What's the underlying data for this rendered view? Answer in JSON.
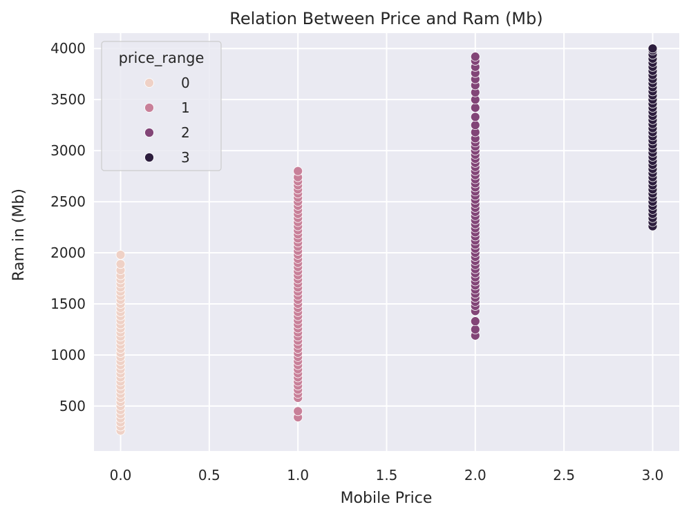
{
  "chart_data": {
    "type": "scatter",
    "title": "Relation Between Price and Ram (Mb)",
    "xlabel": "Mobile Price",
    "ylabel": "Ram in (Mb)",
    "xlim": [
      -0.15,
      3.15
    ],
    "ylim": [
      60,
      4150
    ],
    "xticks": [
      0.0,
      0.5,
      1.0,
      1.5,
      2.0,
      2.5,
      3.0
    ],
    "xtick_labels": [
      "0.0",
      "0.5",
      "1.0",
      "1.5",
      "2.0",
      "2.5",
      "3.0"
    ],
    "yticks": [
      500,
      1000,
      1500,
      2000,
      2500,
      3000,
      3500,
      4000
    ],
    "ytick_labels": [
      "500",
      "1000",
      "1500",
      "2000",
      "2500",
      "3000",
      "3500",
      "4000"
    ],
    "grid": true,
    "background": "#EAEAF2",
    "legend": {
      "title": "price_range",
      "placement": "top-left",
      "entries": [
        {
          "label": "0",
          "color": "#EFD1C6"
        },
        {
          "label": "1",
          "color": "#C88099"
        },
        {
          "label": "2",
          "color": "#824577"
        },
        {
          "label": "3",
          "color": "#2D1E3E"
        }
      ]
    },
    "series": [
      {
        "name": "0",
        "x": 0,
        "color": "#EFD1C6",
        "y": [
          260,
          300,
          340,
          380,
          420,
          460,
          500,
          540,
          580,
          620,
          660,
          700,
          740,
          780,
          820,
          860,
          900,
          940,
          980,
          1020,
          1060,
          1100,
          1140,
          1180,
          1220,
          1260,
          1300,
          1340,
          1380,
          1420,
          1460,
          1500,
          1540,
          1580,
          1620,
          1660,
          1700,
          1740,
          1780,
          1830,
          1890,
          1980
        ]
      },
      {
        "name": "1",
        "x": 1,
        "color": "#C88099",
        "y": [
          390,
          450,
          580,
          620,
          660,
          700,
          740,
          780,
          820,
          860,
          900,
          940,
          980,
          1020,
          1060,
          1100,
          1140,
          1180,
          1220,
          1260,
          1300,
          1340,
          1380,
          1420,
          1460,
          1500,
          1540,
          1580,
          1620,
          1660,
          1700,
          1740,
          1780,
          1820,
          1860,
          1900,
          1940,
          1980,
          2020,
          2060,
          2100,
          2140,
          2180,
          2220,
          2260,
          2300,
          2340,
          2380,
          2420,
          2460,
          2500,
          2540,
          2580,
          2620,
          2660,
          2700,
          2740,
          2800
        ]
      },
      {
        "name": "2",
        "x": 2,
        "color": "#824577",
        "y": [
          1190,
          1250,
          1330,
          1430,
          1480,
          1520,
          1560,
          1600,
          1640,
          1680,
          1720,
          1760,
          1800,
          1840,
          1880,
          1920,
          1960,
          2000,
          2040,
          2080,
          2120,
          2160,
          2200,
          2240,
          2280,
          2320,
          2360,
          2400,
          2440,
          2480,
          2520,
          2560,
          2600,
          2640,
          2680,
          2720,
          2760,
          2800,
          2840,
          2880,
          2920,
          2960,
          3000,
          3040,
          3080,
          3120,
          3180,
          3250,
          3330,
          3420,
          3500,
          3570,
          3640,
          3700,
          3760,
          3820,
          3880,
          3920
        ]
      },
      {
        "name": "3",
        "x": 3,
        "color": "#2D1E3E",
        "y": [
          2260,
          2300,
          2340,
          2380,
          2420,
          2460,
          2500,
          2540,
          2580,
          2620,
          2660,
          2700,
          2740,
          2780,
          2820,
          2860,
          2900,
          2940,
          2980,
          3020,
          3060,
          3100,
          3140,
          3180,
          3220,
          3260,
          3300,
          3340,
          3380,
          3420,
          3460,
          3500,
          3540,
          3580,
          3620,
          3660,
          3700,
          3740,
          3780,
          3820,
          3860,
          3900,
          3940,
          3980,
          4000
        ]
      }
    ]
  }
}
